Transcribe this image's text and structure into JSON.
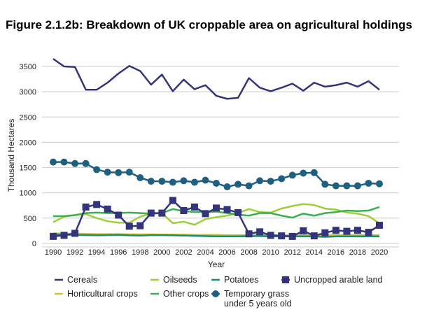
{
  "chart_data": {
    "type": "line",
    "title": "Figure 2.1.2b: Breakdown of UK croppable area on agricultural holdings",
    "xlabel": "Year",
    "ylabel": "Thousand Hectares",
    "ylim": [
      0,
      3500
    ],
    "yticks": [
      0,
      500,
      1000,
      1500,
      2000,
      2500,
      3000,
      3500
    ],
    "xticks": [
      1990,
      1992,
      1994,
      1996,
      1998,
      2000,
      2002,
      2004,
      2006,
      2008,
      2010,
      2012,
      2014,
      2016,
      2018,
      2020
    ],
    "grid": true,
    "legend_position": "bottom",
    "x": [
      1990,
      1991,
      1992,
      1993,
      1994,
      1995,
      1996,
      1997,
      1998,
      1999,
      2000,
      2001,
      2002,
      2003,
      2004,
      2005,
      2006,
      2007,
      2008,
      2009,
      2010,
      2011,
      2012,
      2013,
      2014,
      2015,
      2016,
      2017,
      2018,
      2019,
      2020
    ],
    "series": [
      {
        "name": "Cereals",
        "color": "#34347c",
        "marker": "none",
        "values": [
          3650,
          3500,
          3490,
          3040,
          3040,
          3180,
          3360,
          3510,
          3410,
          3140,
          3340,
          3010,
          3240,
          3050,
          3130,
          2920,
          2860,
          2880,
          3270,
          3080,
          3010,
          3080,
          3160,
          3020,
          3180,
          3100,
          3130,
          3180,
          3100,
          3210,
          3040
        ]
      },
      {
        "name": "Oilseeds",
        "color": "#9ccf3a",
        "marker": "none",
        "values": [
          420,
          530,
          560,
          580,
          500,
          440,
          410,
          410,
          530,
          590,
          600,
          400,
          430,
          370,
          480,
          520,
          550,
          600,
          680,
          620,
          610,
          690,
          740,
          780,
          760,
          690,
          670,
          610,
          590,
          540,
          400
        ]
      },
      {
        "name": "Potatoes",
        "color": "#1a8a7a",
        "marker": "none",
        "values": [
          180,
          175,
          170,
          165,
          160,
          165,
          170,
          160,
          155,
          165,
          165,
          160,
          155,
          150,
          145,
          140,
          140,
          140,
          145,
          145,
          140,
          140,
          140,
          140,
          140,
          130,
          140,
          140,
          140,
          140,
          140
        ]
      },
      {
        "name": "Uncropped arable land",
        "color": "#34347c",
        "marker": "square",
        "values": [
          140,
          160,
          200,
          720,
          770,
          680,
          560,
          340,
          350,
          600,
          600,
          850,
          650,
          720,
          590,
          700,
          670,
          610,
          190,
          230,
          160,
          150,
          140,
          250,
          150,
          210,
          260,
          240,
          260,
          220,
          360
        ]
      },
      {
        "name": "Horticultural crops",
        "color": "#d4c22a",
        "marker": "none",
        "values": [
          200,
          195,
          195,
          190,
          185,
          185,
          185,
          180,
          180,
          180,
          175,
          175,
          175,
          170,
          170,
          170,
          165,
          165,
          165,
          165,
          165,
          165,
          165,
          165,
          165,
          165,
          165,
          165,
          165,
          165,
          165
        ]
      },
      {
        "name": "Other crops",
        "color": "#3cb050",
        "marker": "none",
        "values": [
          540,
          540,
          560,
          600,
          610,
          600,
          600,
          610,
          600,
          590,
          600,
          680,
          640,
          620,
          620,
          630,
          600,
          570,
          550,
          600,
          600,
          550,
          510,
          590,
          550,
          600,
          620,
          650,
          640,
          650,
          720
        ]
      },
      {
        "name": "Temporary grass under 5 years old",
        "color": "#1f6080",
        "marker": "circle",
        "values": [
          1610,
          1610,
          1580,
          1580,
          1460,
          1410,
          1400,
          1410,
          1300,
          1230,
          1230,
          1210,
          1240,
          1210,
          1250,
          1190,
          1120,
          1170,
          1140,
          1240,
          1230,
          1280,
          1350,
          1390,
          1400,
          1170,
          1140,
          1140,
          1140,
          1190,
          1180
        ]
      }
    ],
    "legend_labels": {
      "row2_temp_line1": "Temporary grass",
      "row2_temp_line2": "under 5 years old"
    }
  }
}
